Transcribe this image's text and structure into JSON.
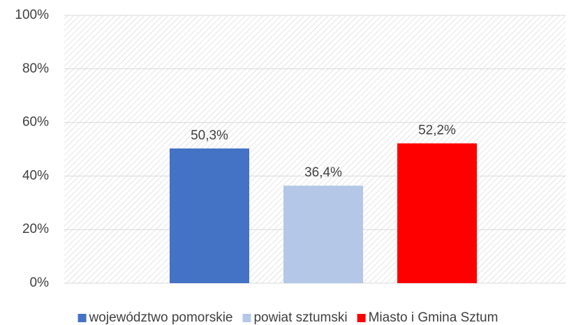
{
  "chart_data": {
    "type": "bar",
    "categories": [
      null
    ],
    "series": [
      {
        "name": "województwo pomorskie",
        "color": "#4472c4",
        "values": [
          50.3
        ],
        "value_labels": [
          "50,3%"
        ]
      },
      {
        "name": "powiat sztumski",
        "color": "#b4c7e7",
        "values": [
          36.4
        ],
        "value_labels": [
          "36,4%"
        ]
      },
      {
        "name": "Miasto i Gmina Sztum",
        "color": "#ff0000",
        "values": [
          52.2
        ],
        "value_labels": [
          "52,2%"
        ]
      }
    ],
    "ylim": [
      0,
      100
    ],
    "yticks": [
      {
        "value": 0,
        "label": "0%"
      },
      {
        "value": 20,
        "label": "20%"
      },
      {
        "value": 40,
        "label": "40%"
      },
      {
        "value": 60,
        "label": "60%"
      },
      {
        "value": 80,
        "label": "80%"
      },
      {
        "value": 100,
        "label": "100%"
      }
    ],
    "grid": true,
    "legend": "bottom"
  }
}
